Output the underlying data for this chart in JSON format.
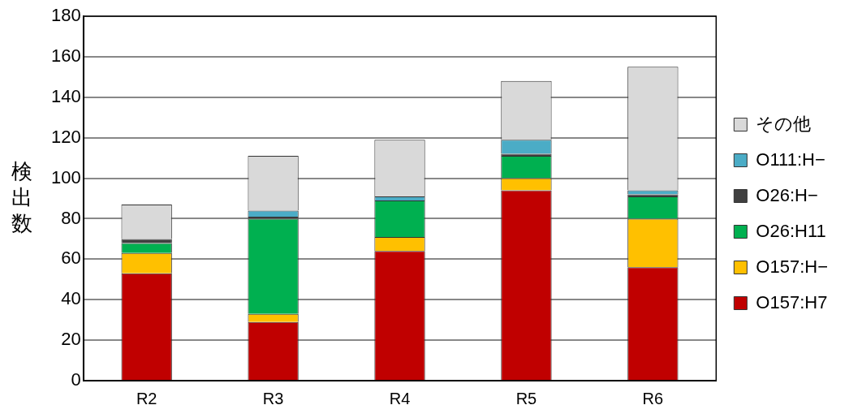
{
  "chart_data": {
    "type": "bar",
    "stacked": true,
    "ylabel": "検出数",
    "categories": [
      "R2",
      "R3",
      "R4",
      "R5",
      "R6"
    ],
    "series": [
      {
        "name": "O157:H7",
        "color": "#c00000",
        "values": [
          53,
          29,
          64,
          94,
          56
        ]
      },
      {
        "name": "O157:H−",
        "color": "#ffc000",
        "values": [
          10,
          4,
          7,
          6,
          24
        ]
      },
      {
        "name": "O26:H11",
        "color": "#00b050",
        "values": [
          5,
          47,
          18,
          11,
          11
        ]
      },
      {
        "name": "O26:H−",
        "color": "#404040",
        "values": [
          2,
          1,
          0,
          1,
          1
        ]
      },
      {
        "name": "O111:H−",
        "color": "#4bacc6",
        "values": [
          0,
          3,
          2,
          7,
          2
        ]
      },
      {
        "name": "その他",
        "color": "#d9d9d9",
        "values": [
          17,
          27,
          28,
          29,
          61
        ]
      }
    ],
    "ylim": [
      0,
      180
    ],
    "yticks": [
      0,
      20,
      40,
      60,
      80,
      100,
      120,
      140,
      160,
      180
    ],
    "grid": "y",
    "legend": "right"
  }
}
